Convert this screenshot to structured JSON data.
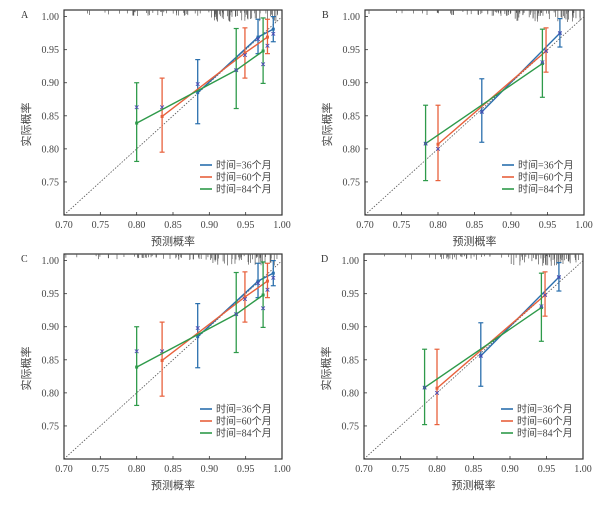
{
  "figure": {
    "legend_label_prefix": "时间=",
    "legend_label_suffix": "个月"
  },
  "colors": {
    "t36": "#2a6fad",
    "t60": "#e8613c",
    "t84": "#2e9a4a",
    "marker": "#4b4bb5",
    "diagonal": "#555555",
    "rug": "#555555",
    "frame": "#333333"
  },
  "chart_data": [
    {
      "type": "line",
      "panel": "A",
      "xlabel": "预测概率",
      "ylabel": "实际概率",
      "xlim": [
        0.7,
        1.0
      ],
      "ylim": [
        0.7,
        1.01
      ],
      "xticks": [
        "0.70",
        "0.75",
        "0.80",
        "0.85",
        "0.90",
        "0.95",
        "1.00"
      ],
      "yticks": [
        "0.75",
        "0.80",
        "0.85",
        "0.90",
        "0.95",
        "1.00"
      ],
      "grid": false,
      "legend_position": "bottom-right",
      "reference_line": "diagonal y=x",
      "series": [
        {
          "name": "时间=36个月",
          "color_key": "t36",
          "points": [
            {
              "x": 0.884,
              "y": 0.885,
              "lo": 0.838,
              "hi": 0.935,
              "obs": 0.898
            },
            {
              "x": 0.967,
              "y": 0.969,
              "lo": 0.944,
              "hi": 0.996,
              "obs": 0.966
            },
            {
              "x": 0.988,
              "y": 0.981,
              "lo": 0.962,
              "hi": 1.0,
              "obs": 0.974
            }
          ]
        },
        {
          "name": "时间=60个月",
          "color_key": "t60",
          "points": [
            {
              "x": 0.835,
              "y": 0.849,
              "lo": 0.795,
              "hi": 0.907,
              "obs": 0.863
            },
            {
              "x": 0.949,
              "y": 0.945,
              "lo": 0.907,
              "hi": 0.983,
              "obs": 0.942
            },
            {
              "x": 0.98,
              "y": 0.969,
              "lo": 0.944,
              "hi": 0.996,
              "obs": 0.956
            }
          ]
        },
        {
          "name": "时间=84个月",
          "color_key": "t84",
          "points": [
            {
              "x": 0.8,
              "y": 0.839,
              "lo": 0.781,
              "hi": 0.9,
              "obs": 0.863
            },
            {
              "x": 0.937,
              "y": 0.919,
              "lo": 0.861,
              "hi": 0.982,
              "obs": 0.919
            },
            {
              "x": 0.974,
              "y": 0.948,
              "lo": 0.899,
              "hi": 0.998,
              "obs": 0.928
            }
          ]
        }
      ]
    },
    {
      "type": "line",
      "panel": "B",
      "xlabel": "预测概率",
      "ylabel": "实际概率",
      "xlim": [
        0.7,
        1.0
      ],
      "ylim": [
        0.7,
        1.01
      ],
      "xticks": [
        "0.70",
        "0.75",
        "0.80",
        "0.85",
        "0.90",
        "0.95",
        "1.00"
      ],
      "yticks": [
        "0.75",
        "0.80",
        "0.85",
        "0.90",
        "0.95",
        "1.00"
      ],
      "grid": false,
      "legend_position": "bottom-right",
      "reference_line": "diagonal y=x",
      "series": [
        {
          "name": "时间=36个月",
          "color_key": "t36",
          "points": [
            {
              "x": 0.86,
              "y": 0.856,
              "lo": 0.81,
              "hi": 0.906,
              "obs": 0.856
            },
            {
              "x": 0.967,
              "y": 0.975,
              "lo": 0.954,
              "hi": 0.997,
              "obs": 0.975
            }
          ]
        },
        {
          "name": "时间=60个月",
          "color_key": "t60",
          "points": [
            {
              "x": 0.8,
              "y": 0.807,
              "lo": 0.752,
              "hi": 0.866,
              "obs": 0.8
            },
            {
              "x": 0.948,
              "y": 0.948,
              "lo": 0.916,
              "hi": 0.983,
              "obs": 0.948
            }
          ]
        },
        {
          "name": "时间=84个月",
          "color_key": "t84",
          "points": [
            {
              "x": 0.783,
              "y": 0.808,
              "lo": 0.752,
              "hi": 0.866,
              "obs": 0.808
            },
            {
              "x": 0.943,
              "y": 0.929,
              "lo": 0.878,
              "hi": 0.981,
              "obs": 0.931
            }
          ]
        }
      ]
    },
    {
      "type": "line",
      "panel": "C",
      "xlabel": "预测概率",
      "ylabel": "实际概率",
      "xlim": [
        0.7,
        1.0
      ],
      "ylim": [
        0.7,
        1.01
      ],
      "xticks": [
        "0.70",
        "0.75",
        "0.80",
        "0.85",
        "0.90",
        "0.95",
        "1.00"
      ],
      "yticks": [
        "0.75",
        "0.80",
        "0.85",
        "0.90",
        "0.95",
        "1.00"
      ],
      "grid": false,
      "legend_position": "bottom-right",
      "reference_line": "diagonal y=x",
      "series": [
        {
          "name": "时间=36个月",
          "color_key": "t36",
          "points": [
            {
              "x": 0.884,
              "y": 0.885,
              "lo": 0.838,
              "hi": 0.935,
              "obs": 0.898
            },
            {
              "x": 0.967,
              "y": 0.969,
              "lo": 0.944,
              "hi": 0.996,
              "obs": 0.966
            },
            {
              "x": 0.988,
              "y": 0.981,
              "lo": 0.962,
              "hi": 1.0,
              "obs": 0.974
            }
          ]
        },
        {
          "name": "时间=60个月",
          "color_key": "t60",
          "points": [
            {
              "x": 0.835,
              "y": 0.849,
              "lo": 0.795,
              "hi": 0.907,
              "obs": 0.863
            },
            {
              "x": 0.949,
              "y": 0.945,
              "lo": 0.907,
              "hi": 0.983,
              "obs": 0.942
            },
            {
              "x": 0.98,
              "y": 0.969,
              "lo": 0.944,
              "hi": 0.996,
              "obs": 0.956
            }
          ]
        },
        {
          "name": "时间=84个月",
          "color_key": "t84",
          "points": [
            {
              "x": 0.8,
              "y": 0.839,
              "lo": 0.781,
              "hi": 0.9,
              "obs": 0.863
            },
            {
              "x": 0.937,
              "y": 0.919,
              "lo": 0.861,
              "hi": 0.982,
              "obs": 0.919
            },
            {
              "x": 0.974,
              "y": 0.948,
              "lo": 0.899,
              "hi": 0.998,
              "obs": 0.928
            }
          ]
        }
      ]
    },
    {
      "type": "line",
      "panel": "D",
      "xlabel": "预测概率",
      "ylabel": "实际概率",
      "xlim": [
        0.7,
        1.0
      ],
      "ylim": [
        0.7,
        1.01
      ],
      "xticks": [
        "0.70",
        "0.75",
        "0.80",
        "0.85",
        "0.90",
        "0.95",
        "1.00"
      ],
      "yticks": [
        "0.75",
        "0.80",
        "0.85",
        "0.90",
        "0.95",
        "1.00"
      ],
      "grid": false,
      "legend_position": "bottom-right",
      "reference_line": "diagonal y=x",
      "series": [
        {
          "name": "时间=36个月",
          "color_key": "t36",
          "points": [
            {
              "x": 0.86,
              "y": 0.856,
              "lo": 0.81,
              "hi": 0.906,
              "obs": 0.856
            },
            {
              "x": 0.967,
              "y": 0.975,
              "lo": 0.954,
              "hi": 0.997,
              "obs": 0.975
            }
          ]
        },
        {
          "name": "时间=60个月",
          "color_key": "t60",
          "points": [
            {
              "x": 0.8,
              "y": 0.807,
              "lo": 0.752,
              "hi": 0.866,
              "obs": 0.8
            },
            {
              "x": 0.948,
              "y": 0.948,
              "lo": 0.916,
              "hi": 0.983,
              "obs": 0.948
            }
          ]
        },
        {
          "name": "时间=84个月",
          "color_key": "t84",
          "points": [
            {
              "x": 0.783,
              "y": 0.808,
              "lo": 0.752,
              "hi": 0.866,
              "obs": 0.808
            },
            {
              "x": 0.943,
              "y": 0.929,
              "lo": 0.878,
              "hi": 0.981,
              "obs": 0.931
            }
          ]
        }
      ]
    }
  ]
}
